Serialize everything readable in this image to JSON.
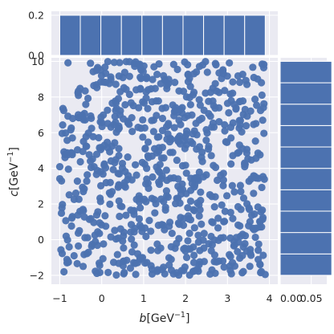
{
  "chart_data": {
    "type": "scatter",
    "title": "",
    "xlabel": "b[GeV⁻¹]",
    "ylabel": "c[GeV⁻¹]",
    "xlabel_parts": {
      "var": "b",
      "unit": "[GeV",
      "exp": "−1",
      "close": "]"
    },
    "ylabel_parts": {
      "var": "c",
      "unit": "[GeV",
      "exp": "−1",
      "close": "]"
    },
    "xlim": [
      -1.2,
      4.2
    ],
    "ylim": [
      -2.5,
      10.2
    ],
    "xticks": [
      -1,
      0,
      1,
      2,
      3,
      4
    ],
    "xtick_labels": [
      "−1",
      "0",
      "1",
      "2",
      "3",
      "4"
    ],
    "yticks": [
      -2,
      0,
      2,
      4,
      6,
      8,
      10
    ],
    "ytick_labels": [
      "−2",
      "0",
      "2",
      "4",
      "6",
      "8",
      "10"
    ],
    "grid": true,
    "marker_color": "#4c72b0",
    "background_color": "#eaeaf2",
    "point_generation": {
      "count": 800,
      "x_range": [
        -1.0,
        3.9
      ],
      "y_range": [
        -2.0,
        10.0
      ],
      "seed": 12345
    },
    "top_marginal": {
      "type": "histogram",
      "bin_edges": [
        -1.0,
        -0.51,
        -0.02,
        0.47,
        0.96,
        1.45,
        1.94,
        2.43,
        2.92,
        3.41,
        3.9
      ],
      "values": [
        0.2,
        0.2,
        0.2,
        0.2,
        0.2,
        0.2,
        0.2,
        0.2,
        0.2,
        0.2
      ],
      "ylim": [
        0.0,
        0.22
      ],
      "yticks": [
        0.0,
        0.2
      ],
      "ytick_labels": [
        "0.0",
        "0.2"
      ]
    },
    "right_marginal": {
      "type": "histogram",
      "bin_edges": [
        -2.0,
        -0.8,
        0.4,
        1.6,
        2.8,
        4.0,
        5.2,
        6.4,
        7.6,
        8.8,
        10.0
      ],
      "values": [
        0.083,
        0.083,
        0.083,
        0.083,
        0.083,
        0.083,
        0.083,
        0.083,
        0.083,
        0.083
      ],
      "xlim": [
        0.0,
        0.075
      ],
      "xticks": [
        0.0,
        0.05
      ],
      "xtick_labels": [
        "0.00",
        "0.05"
      ]
    }
  }
}
